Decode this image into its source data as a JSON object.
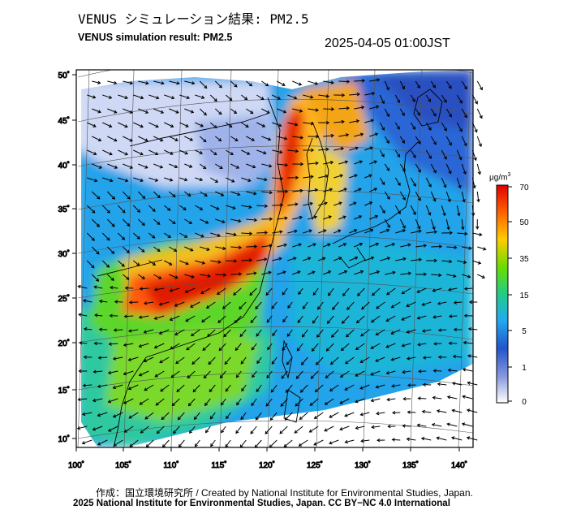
{
  "header": {
    "title_jp": "VENUS シミュレーション結果: PM2.5",
    "title_en": "VENUS simulation result: PM2.5",
    "timestamp": "2025-04-05 01:00JST"
  },
  "map": {
    "variable": "PM2.5",
    "lon_ticks": [
      "100˚",
      "105˚",
      "110˚",
      "115˚",
      "120˚",
      "125˚",
      "130˚",
      "135˚",
      "140˚"
    ],
    "lat_ticks": [
      "50˚",
      "45˚",
      "40˚",
      "35˚",
      "30˚",
      "25˚",
      "20˚",
      "15˚",
      "10˚"
    ],
    "regions": [
      {
        "name": "south-china-haze",
        "level": "very-high"
      },
      {
        "name": "north-china-plume",
        "level": "high"
      },
      {
        "name": "northeast-china-plume",
        "level": "high"
      },
      {
        "name": "korea-peninsula",
        "level": "medium"
      },
      {
        "name": "japan",
        "level": "low"
      },
      {
        "name": "ocean-east",
        "level": "low"
      }
    ],
    "wind_vectors": true
  },
  "colorbar": {
    "unit": "μg/m",
    "unit_sup": "3",
    "ticks": [
      "70",
      "50",
      "35",
      "15",
      "5",
      "1",
      "0"
    ],
    "colors": [
      "#e00000",
      "#ff6600",
      "#ffcc00",
      "#66dd00",
      "#22cc88",
      "#22aaee",
      "#2255cc",
      "#8899dd",
      "#ffffff"
    ]
  },
  "credits": {
    "line1": "作成：国立環境研究所 / Created by National Institute for Environmental Studies, Japan.",
    "line2": "2025 National Institute for Environmental Studies, Japan. CC BY−NC 4.0 International"
  }
}
